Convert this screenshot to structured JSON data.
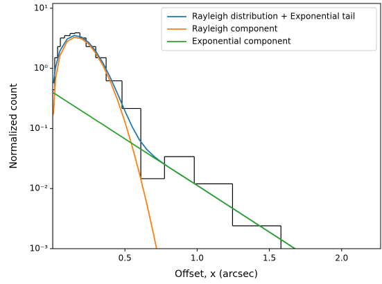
{
  "chart_data": {
    "type": "line",
    "xlabel": "Offset, x (arcsec)",
    "ylabel": "Normalized count",
    "xlim": [
      0,
      2.27
    ],
    "ylim": [
      0.001,
      12
    ],
    "yscale": "log",
    "xticks": [
      0.5,
      {
        "value": 1.0,
        "label": "1.0"
      },
      1.5,
      {
        "value": 2.0,
        "label": "2.0"
      }
    ],
    "yticks": [
      {
        "value": 0.001,
        "label": "10⁻³"
      },
      {
        "value": 0.01,
        "label": "10⁻²"
      },
      {
        "value": 0.1,
        "label": "10⁻¹"
      },
      {
        "value": 1,
        "label": "10⁰"
      },
      {
        "value": 10,
        "label": "10¹"
      }
    ],
    "legend": "upper right",
    "histogram": {
      "color": "#000000",
      "bins": [
        0.0,
        0.014,
        0.034,
        0.053,
        0.082,
        0.12,
        0.154,
        0.188,
        0.231,
        0.298,
        0.37,
        0.48,
        0.61,
        0.774,
        0.98,
        1.245,
        1.58
      ],
      "counts": [
        0.44,
        1.5,
        2.3,
        3.2,
        3.5,
        3.8,
        3.9,
        3.2,
        2.3,
        1.5,
        0.62,
        0.215,
        0.0146,
        0.034,
        0.012,
        0.0024
      ]
    },
    "series": [
      {
        "name": "Rayleigh distribution + Exponential tail",
        "color": "#1f77b4",
        "x": [
          0.005,
          0.02,
          0.05,
          0.1,
          0.15,
          0.2,
          0.25,
          0.3,
          0.35,
          0.4,
          0.45,
          0.5,
          0.55,
          0.6,
          0.65,
          0.7,
          0.75,
          0.8,
          0.9,
          1.0,
          1.2,
          1.4,
          1.6,
          1.7
        ],
        "values": [
          0.563,
          1.047,
          1.954,
          3.08,
          3.524,
          3.306,
          2.674,
          1.897,
          1.205,
          0.693,
          0.373,
          0.196,
          0.107,
          0.0649,
          0.0451,
          0.0345,
          0.0279,
          0.023,
          0.0161,
          0.0113,
          0.00551,
          0.0027,
          0.00132,
          0.00092
        ]
      },
      {
        "name": "Rayleigh component",
        "color": "#ff7f0e",
        "x": [
          0.005,
          0.02,
          0.05,
          0.1,
          0.15,
          0.2,
          0.25,
          0.3,
          0.35,
          0.4,
          0.45,
          0.5,
          0.55,
          0.6,
          0.65,
          0.7,
          0.75
        ],
        "values": [
          0.17,
          0.675,
          1.62,
          2.8,
          3.29,
          3.11,
          2.51,
          1.76,
          1.09,
          0.597,
          0.293,
          0.129,
          0.0508,
          0.018,
          0.00578,
          0.00167,
          0.00043
        ]
      },
      {
        "name": "Exponential component",
        "color": "#2ca02c",
        "x": [
          0.005,
          0.02,
          0.05,
          0.1,
          0.15,
          0.2,
          0.25,
          0.3,
          0.35,
          0.4,
          0.45,
          0.5,
          0.55,
          0.6,
          0.65,
          0.7,
          0.75,
          0.8,
          0.9,
          1.0,
          1.2,
          1.4,
          1.6,
          1.7
        ],
        "values": [
          0.393,
          0.372,
          0.334,
          0.28,
          0.234,
          0.196,
          0.164,
          0.137,
          0.115,
          0.0959,
          0.0801,
          0.0671,
          0.0561,
          0.0469,
          0.0393,
          0.0328,
          0.0275,
          0.023,
          0.0161,
          0.0113,
          0.00551,
          0.0027,
          0.00132,
          0.00092
        ]
      }
    ]
  }
}
